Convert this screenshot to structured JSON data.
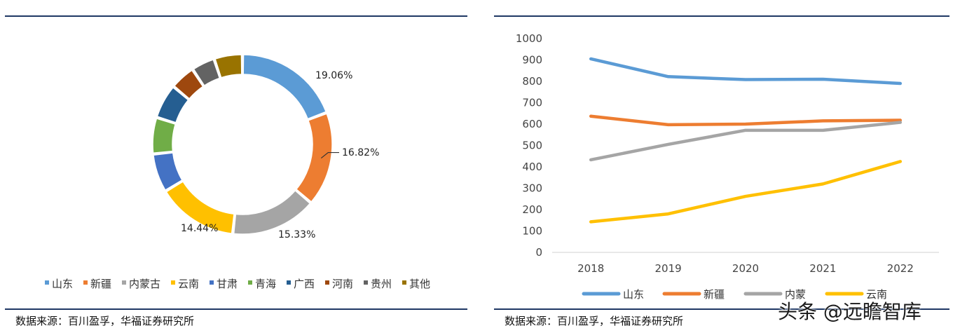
{
  "left": {
    "source": "数据来源：百川盈孚，华福证券研究所"
  },
  "right": {
    "source": "数据来源：百川盈孚，华福证券研究所"
  },
  "watermark": "头条 @远瞻智库",
  "chart_data": [
    {
      "type": "pie",
      "variant": "donut",
      "title": "",
      "categories": [
        "山东",
        "新疆",
        "内蒙古",
        "云南",
        "甘肃",
        "青海",
        "广西",
        "河南",
        "贵州",
        "其他"
      ],
      "values": [
        19.06,
        16.82,
        15.33,
        14.44,
        6.9,
        6.5,
        6.2,
        4.5,
        4.2,
        5.05
      ],
      "labels": [
        "19.06%",
        "16.82%",
        "15.33%",
        "14.44%",
        "",
        "",
        "",
        "",
        "",
        ""
      ],
      "colors": [
        "#5b9bd5",
        "#ed7d31",
        "#a5a5a5",
        "#ffc000",
        "#4472c4",
        "#70ad47",
        "#255e91",
        "#9e480e",
        "#636363",
        "#997300"
      ],
      "legend_position": "bottom"
    },
    {
      "type": "line",
      "title": "",
      "x": [
        "2018",
        "2019",
        "2020",
        "2021",
        "2022"
      ],
      "series": [
        {
          "name": "山东",
          "values": [
            905,
            822,
            808,
            810,
            790
          ],
          "color": "#5b9bd5"
        },
        {
          "name": "新疆",
          "values": [
            637,
            597,
            600,
            615,
            618
          ],
          "color": "#ed7d31"
        },
        {
          "name": "内蒙",
          "values": [
            433,
            505,
            571,
            571,
            608
          ],
          "color": "#a5a5a5"
        },
        {
          "name": "云南",
          "values": [
            143,
            180,
            262,
            320,
            425
          ],
          "color": "#ffc000"
        }
      ],
      "ylim": [
        0,
        1000
      ],
      "yticks": [
        "0",
        "100",
        "200",
        "300",
        "400",
        "500",
        "600",
        "700",
        "800",
        "900",
        "1000"
      ],
      "xlabel": "",
      "ylabel": "",
      "grid": false,
      "legend_position": "bottom"
    }
  ]
}
